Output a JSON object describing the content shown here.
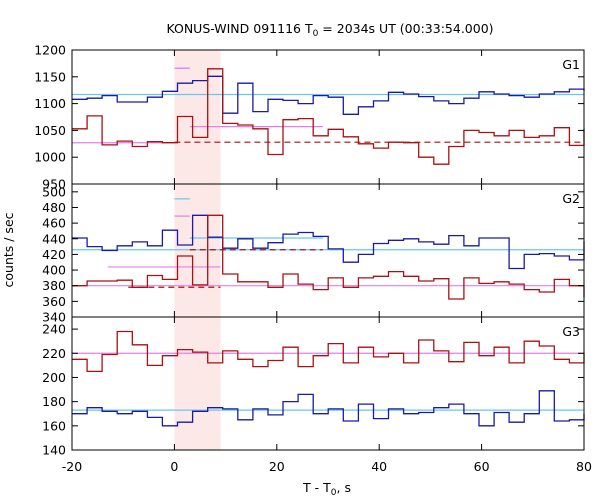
{
  "chart_data": {
    "type": "line",
    "title_main": "KONUS-WIND 091116 T",
    "title_sub": "0",
    "title_rest": " = 2034s UT (00:33:54.000)",
    "xlabel_main": "T - T",
    "xlabel_sub": "0",
    "xlabel_rest": ", s",
    "ylabel": "counts / sec",
    "xlim": [
      -20,
      80
    ],
    "xticks": [
      "-20",
      "0",
      "20",
      "40",
      "60",
      "80"
    ],
    "highlight_interval": [
      0,
      9
    ],
    "colors": {
      "highlight": "#fde8e8",
      "blue_series": "#1a1aa6",
      "red_series": "#aa1111",
      "cyan_level": "#66c8f0",
      "pink_level": "#e87ee8"
    },
    "panels": [
      {
        "label": "G1",
        "ylim": [
          950,
          1200
        ],
        "yticks": [
          "950",
          "1000",
          "1050",
          "1100",
          "1150",
          "1200"
        ],
        "series": [
          {
            "color_key": "blue_series",
            "x_start": -20,
            "bin": 2.944,
            "values": [
              1108,
              1110,
              1115,
              1103,
              1103,
              1112,
              1123,
              1138,
              1143,
              1151,
              1082,
              1138,
              1085,
              1108,
              1106,
              1100,
              1115,
              1112,
              1080,
              1094,
              1105,
              1121,
              1118,
              1113,
              1105,
              1100,
              1110,
              1122,
              1118,
              1115,
              1112,
              1118,
              1122,
              1127,
              1124
            ]
          },
          {
            "color_key": "red_series",
            "x_start": -20,
            "bin": 2.944,
            "values": [
              1053,
              1077,
              1023,
              1030,
              1020,
              1029,
              1027,
              1076,
              1037,
              1165,
              1063,
              1060,
              1053,
              1005,
              1070,
              1072,
              1040,
              1052,
              1038,
              1025,
              1017,
              1028,
              1027,
              1000,
              987,
              1020,
              1050,
              1046,
              1040,
              1050,
              1037,
              1040,
              1055,
              1022,
              1053
            ]
          }
        ],
        "levels": [
          {
            "color_key": "cyan_level",
            "style": "solid",
            "y": 1117,
            "from": -20,
            "to": 80
          },
          {
            "color_key": "cyan_level",
            "style": "solid",
            "y": 1166,
            "from": 0.5,
            "to": 3
          },
          {
            "color_key": "pink_level",
            "style": "solid",
            "y": 1166,
            "from": 0,
            "to": 3
          },
          {
            "color_key": "pink_level",
            "style": "solid",
            "y": 1057,
            "from": 3,
            "to": 29
          },
          {
            "color_key": "pink_level",
            "style": "solid",
            "y": 1027,
            "from": -20,
            "to": 0
          },
          {
            "color_key": "red_series",
            "style": "dashed",
            "y": 1028,
            "from": 0,
            "to": 80
          }
        ]
      },
      {
        "label": "G2",
        "ylim": [
          340,
          510
        ],
        "yticks": [
          "340",
          "360",
          "380",
          "400",
          "420",
          "440",
          "460",
          "480",
          "500"
        ],
        "series": [
          {
            "color_key": "blue_series",
            "x_start": -20,
            "bin": 2.944,
            "values": [
              441,
              430,
              425,
              431,
              436,
              431,
              451,
              432,
              470,
              442,
              428,
              440,
              428,
              435,
              446,
              448,
              443,
              427,
              410,
              420,
              434,
              438,
              440,
              436,
              433,
              444,
              431,
              441,
              441,
              402,
              420,
              421,
              418,
              413,
              437
            ]
          },
          {
            "color_key": "red_series",
            "x_start": -20,
            "bin": 2.944,
            "values": [
              380,
              386,
              386,
              387,
              378,
              393,
              388,
              418,
              381,
              470,
              395,
              385,
              385,
              378,
              395,
              382,
              375,
              390,
              378,
              390,
              392,
              398,
              392,
              386,
              389,
              363,
              390,
              383,
              385,
              382,
              375,
              372,
              388,
              380,
              365
            ]
          }
        ],
        "levels": [
          {
            "color_key": "cyan_level",
            "style": "solid",
            "y": 426,
            "from": -20,
            "to": 80
          },
          {
            "color_key": "cyan_level",
            "style": "solid",
            "y": 491,
            "from": 0,
            "to": 3
          },
          {
            "color_key": "cyan_level",
            "style": "solid",
            "y": 441,
            "from": 3,
            "to": 29
          },
          {
            "color_key": "pink_level",
            "style": "solid",
            "y": 469,
            "from": 0,
            "to": 3
          },
          {
            "color_key": "pink_level",
            "style": "solid",
            "y": 404,
            "from": -13,
            "to": 9
          },
          {
            "color_key": "pink_level",
            "style": "solid",
            "y": 380,
            "from": -20,
            "to": 80
          },
          {
            "color_key": "red_series",
            "style": "dashed",
            "y": 378,
            "from": -9,
            "to": 9
          },
          {
            "color_key": "red_series",
            "style": "dashed",
            "y": 426,
            "from": 3,
            "to": 29
          }
        ]
      },
      {
        "label": "G3",
        "ylim": [
          140,
          250
        ],
        "yticks": [
          "140",
          "160",
          "180",
          "200",
          "220",
          "240"
        ],
        "series": [
          {
            "color_key": "red_series",
            "x_start": -20,
            "bin": 2.944,
            "values": [
              215,
              205,
              219,
              238,
              227,
              210,
              218,
              223,
              221,
              212,
              222,
              215,
              209,
              214,
              225,
              209,
              218,
              228,
              212,
              225,
              217,
              220,
              212,
              231,
              222,
              213,
              229,
              218,
              225,
              212,
              230,
              226,
              215,
              212,
              220
            ]
          },
          {
            "color_key": "blue_series",
            "x_start": -20,
            "bin": 2.944,
            "values": [
              170,
              175,
              172,
              170,
              172,
              167,
              160,
              163,
              172,
              175,
              174,
              165,
              174,
              169,
              180,
              186,
              170,
              174,
              164,
              178,
              166,
              174,
              170,
              171,
              175,
              178,
              170,
              160,
              171,
              163,
              170,
              189,
              164,
              165,
              170
            ]
          }
        ],
        "levels": [
          {
            "color_key": "pink_level",
            "style": "solid",
            "y": 220,
            "from": -20,
            "to": 80
          },
          {
            "color_key": "cyan_level",
            "style": "solid",
            "y": 173,
            "from": -20,
            "to": 80
          }
        ]
      }
    ]
  }
}
